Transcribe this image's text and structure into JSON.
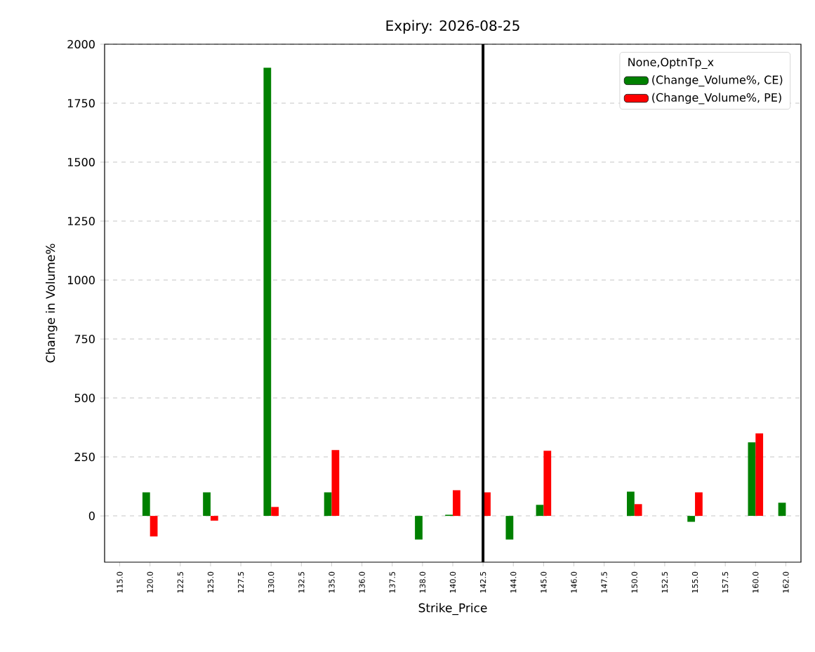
{
  "chart_data": {
    "type": "bar",
    "title": "Expiry: 2026-08-25",
    "xlabel": "Strike_Price",
    "ylabel": "Change in Volume%",
    "legend_title": "None,OptnTp_x",
    "categories": [
      "115.0",
      "120.0",
      "122.5",
      "125.0",
      "127.5",
      "130.0",
      "132.5",
      "135.0",
      "136.0",
      "137.5",
      "138.0",
      "140.0",
      "142.5",
      "144.0",
      "145.0",
      "146.0",
      "147.5",
      "150.0",
      "152.5",
      "155.0",
      "157.5",
      "160.0",
      "162.0"
    ],
    "series": [
      {
        "name": "(Change_Volume%, CE)",
        "color": "#008000",
        "values": [
          null,
          100,
          null,
          100,
          null,
          1900,
          null,
          100,
          null,
          null,
          -100,
          5,
          null,
          -100,
          47,
          null,
          null,
          103,
          null,
          -25,
          null,
          312,
          56
        ]
      },
      {
        "name": "(Change_Volume%, PE)",
        "color": "#ff0000",
        "values": [
          null,
          -87,
          null,
          -20,
          null,
          38,
          null,
          279,
          null,
          null,
          null,
          109,
          100,
          null,
          276,
          null,
          null,
          50,
          null,
          100,
          null,
          350,
          null
        ]
      }
    ],
    "ylim": [
      -196,
      2000
    ],
    "yticks": [
      0,
      250,
      500,
      750,
      1000,
      1250,
      1500,
      1750,
      2000
    ],
    "grid": "y",
    "legend": "top right",
    "ref_lines": [
      {
        "axis": "x",
        "value": "142.5",
        "color": "#000000"
      }
    ]
  }
}
